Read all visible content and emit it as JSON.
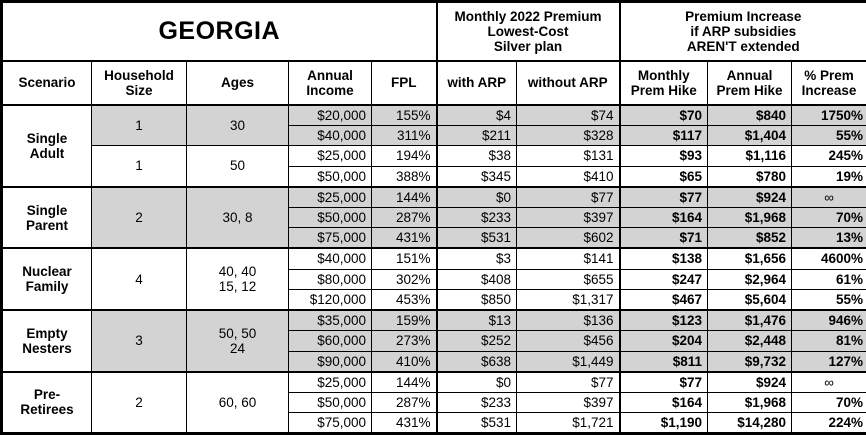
{
  "table": {
    "title": "GEORGIA",
    "premium_header": "Monthly 2022 Premium\nLowest-Cost\nSilver plan",
    "increase_header": "Premium Increase\nif ARP subsidies\nAREN'T extended",
    "columns": {
      "scenario": "Scenario",
      "household_size": "Household\nSize",
      "ages": "Ages",
      "annual_income": "Annual\nIncome",
      "fpl": "FPL",
      "with_arp": "with ARP",
      "without_arp": "without ARP",
      "monthly_hike": "Monthly\nPrem Hike",
      "annual_hike": "Annual\nPrem Hike",
      "pct_increase": "% Prem\nIncrease"
    },
    "shade_color": "#d3d3d3",
    "infinity_symbol": "∞",
    "groups": [
      {
        "scenario": "Single\nAdult",
        "subgroups": [
          {
            "household_size": "1",
            "ages": "30",
            "shaded": true,
            "rows": [
              {
                "income": "$20,000",
                "fpl": "155%",
                "with_arp": "$4",
                "without_arp": "$74",
                "monthly_hike": "$70",
                "annual_hike": "$840",
                "pct_increase": "1750%"
              },
              {
                "income": "$40,000",
                "fpl": "311%",
                "with_arp": "$211",
                "without_arp": "$328",
                "monthly_hike": "$117",
                "annual_hike": "$1,404",
                "pct_increase": "55%"
              }
            ]
          },
          {
            "household_size": "1",
            "ages": "50",
            "shaded": false,
            "rows": [
              {
                "income": "$25,000",
                "fpl": "194%",
                "with_arp": "$38",
                "without_arp": "$131",
                "monthly_hike": "$93",
                "annual_hike": "$1,116",
                "pct_increase": "245%"
              },
              {
                "income": "$50,000",
                "fpl": "388%",
                "with_arp": "$345",
                "without_arp": "$410",
                "monthly_hike": "$65",
                "annual_hike": "$780",
                "pct_increase": "19%"
              }
            ]
          }
        ]
      },
      {
        "scenario": "Single\nParent",
        "subgroups": [
          {
            "household_size": "2",
            "ages": "30, 8",
            "shaded": true,
            "rows": [
              {
                "income": "$25,000",
                "fpl": "144%",
                "with_arp": "$0",
                "without_arp": "$77",
                "monthly_hike": "$77",
                "annual_hike": "$924",
                "pct_increase": "∞"
              },
              {
                "income": "$50,000",
                "fpl": "287%",
                "with_arp": "$233",
                "without_arp": "$397",
                "monthly_hike": "$164",
                "annual_hike": "$1,968",
                "pct_increase": "70%"
              },
              {
                "income": "$75,000",
                "fpl": "431%",
                "with_arp": "$531",
                "without_arp": "$602",
                "monthly_hike": "$71",
                "annual_hike": "$852",
                "pct_increase": "13%"
              }
            ]
          }
        ]
      },
      {
        "scenario": "Nuclear\nFamily",
        "subgroups": [
          {
            "household_size": "4",
            "ages": "40, 40\n15, 12",
            "shaded": false,
            "rows": [
              {
                "income": "$40,000",
                "fpl": "151%",
                "with_arp": "$3",
                "without_arp": "$141",
                "monthly_hike": "$138",
                "annual_hike": "$1,656",
                "pct_increase": "4600%"
              },
              {
                "income": "$80,000",
                "fpl": "302%",
                "with_arp": "$408",
                "without_arp": "$655",
                "monthly_hike": "$247",
                "annual_hike": "$2,964",
                "pct_increase": "61%"
              },
              {
                "income": "$120,000",
                "fpl": "453%",
                "with_arp": "$850",
                "without_arp": "$1,317",
                "monthly_hike": "$467",
                "annual_hike": "$5,604",
                "pct_increase": "55%"
              }
            ]
          }
        ]
      },
      {
        "scenario": "Empty\nNesters",
        "subgroups": [
          {
            "household_size": "3",
            "ages": "50, 50\n24",
            "shaded": true,
            "rows": [
              {
                "income": "$35,000",
                "fpl": "159%",
                "with_arp": "$13",
                "without_arp": "$136",
                "monthly_hike": "$123",
                "annual_hike": "$1,476",
                "pct_increase": "946%"
              },
              {
                "income": "$60,000",
                "fpl": "273%",
                "with_arp": "$252",
                "without_arp": "$456",
                "monthly_hike": "$204",
                "annual_hike": "$2,448",
                "pct_increase": "81%"
              },
              {
                "income": "$90,000",
                "fpl": "410%",
                "with_arp": "$638",
                "without_arp": "$1,449",
                "monthly_hike": "$811",
                "annual_hike": "$9,732",
                "pct_increase": "127%"
              }
            ]
          }
        ]
      },
      {
        "scenario": "Pre-\nRetirees",
        "subgroups": [
          {
            "household_size": "2",
            "ages": "60, 60",
            "shaded": false,
            "rows": [
              {
                "income": "$25,000",
                "fpl": "144%",
                "with_arp": "$0",
                "without_arp": "$77",
                "monthly_hike": "$77",
                "annual_hike": "$924",
                "pct_increase": "∞"
              },
              {
                "income": "$50,000",
                "fpl": "287%",
                "with_arp": "$233",
                "without_arp": "$397",
                "monthly_hike": "$164",
                "annual_hike": "$1,968",
                "pct_increase": "70%"
              },
              {
                "income": "$75,000",
                "fpl": "431%",
                "with_arp": "$531",
                "without_arp": "$1,721",
                "monthly_hike": "$1,190",
                "annual_hike": "$14,280",
                "pct_increase": "224%"
              }
            ]
          }
        ]
      }
    ]
  }
}
